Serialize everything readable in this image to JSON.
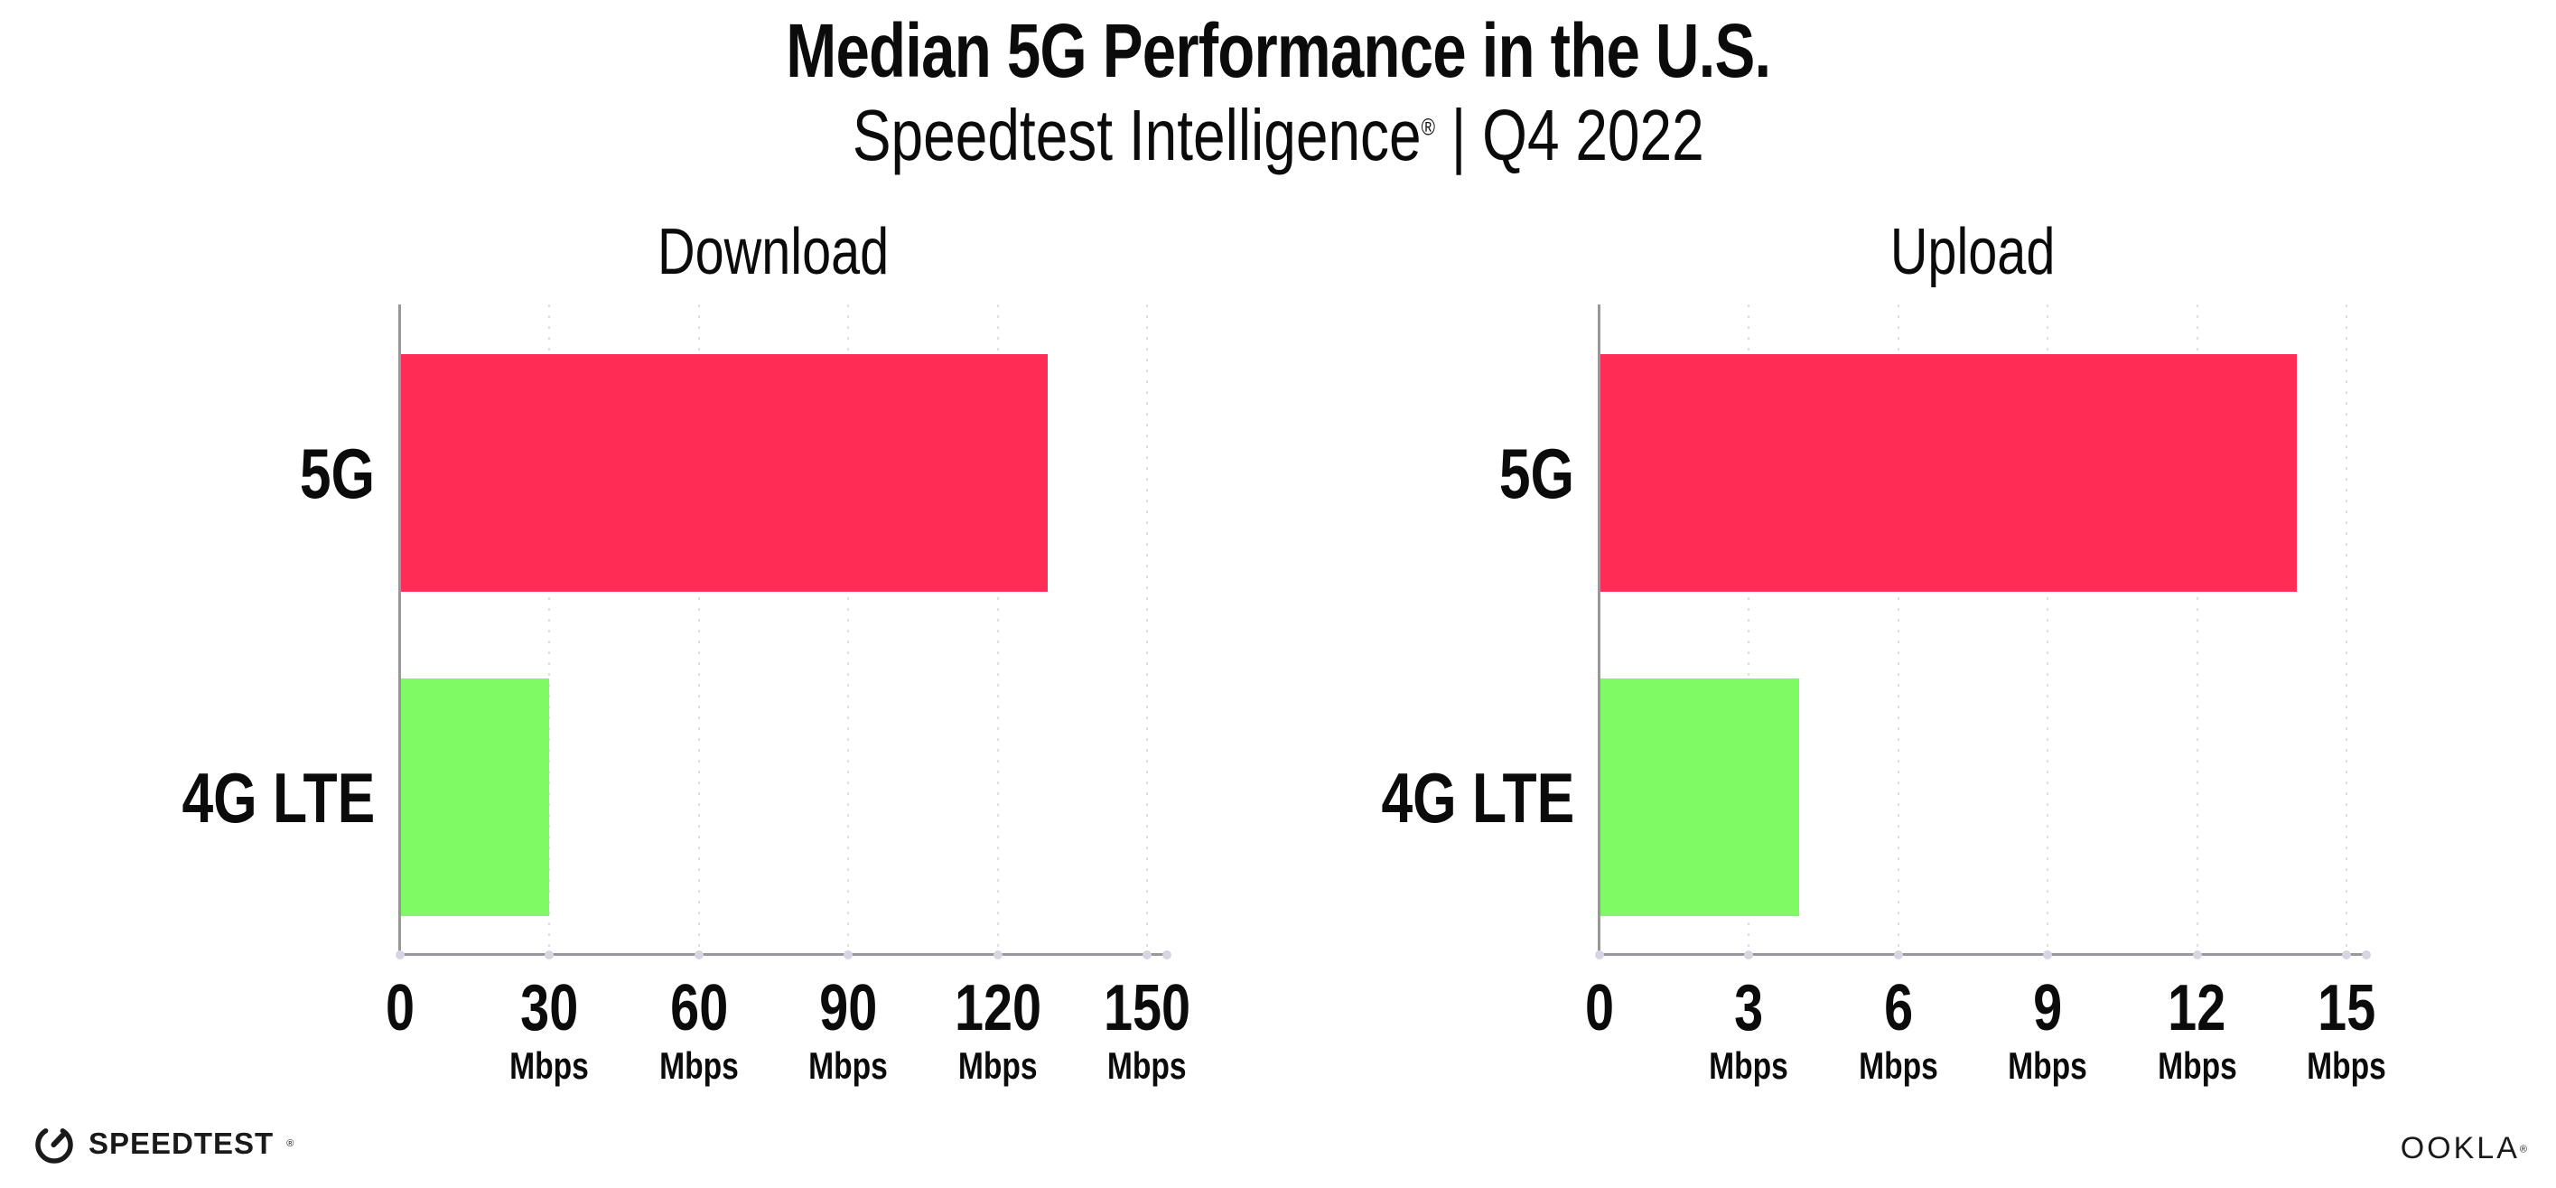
{
  "header": {
    "title": "Median 5G Performance in the U.S.",
    "subtitle_brand": "Speedtest Intelligence",
    "subtitle_reg": "®",
    "subtitle_rest": " | Q4 2022"
  },
  "chart_data": [
    {
      "type": "bar",
      "orientation": "horizontal",
      "title": "Download",
      "categories": [
        "5G",
        "4G LTE"
      ],
      "values": [
        130,
        30
      ],
      "unit": "Mbps",
      "xlabel": "",
      "ylabel": "",
      "xlim": [
        0,
        150
      ],
      "ticks": [
        0,
        30,
        60,
        90,
        120,
        150
      ],
      "series_colors": {
        "5G": "#FF2D55",
        "4G LTE": "#7FFA65"
      },
      "grid": "vertical dotted gridlines at each tick",
      "legend": "none",
      "data_labels": "none"
    },
    {
      "type": "bar",
      "orientation": "horizontal",
      "title": "Upload",
      "categories": [
        "5G",
        "4G LTE"
      ],
      "values": [
        14,
        4
      ],
      "unit": "Mbps",
      "xlabel": "",
      "ylabel": "",
      "xlim": [
        0,
        15
      ],
      "ticks": [
        0,
        3,
        6,
        9,
        12,
        15
      ],
      "series_colors": {
        "5G": "#FF2D55",
        "4G LTE": "#7FFA65"
      },
      "grid": "vertical dotted gridlines at each tick",
      "legend": "none",
      "data_labels": "none"
    }
  ],
  "footer": {
    "speedtest_logo_text": "SPEEDTEST",
    "speedtest_reg": "®",
    "ookla_logo_text": "OOKLA",
    "ookla_reg": "®"
  },
  "colors": {
    "bar_5g": "#FF2D55",
    "bar_4g_lte": "#7FFA65",
    "axis_line": "#97979d",
    "gridline_dots": "#dddee8",
    "axis_tick_dots": "#d5d6e1",
    "text": "#0b0b0b",
    "background": "#ffffff"
  }
}
